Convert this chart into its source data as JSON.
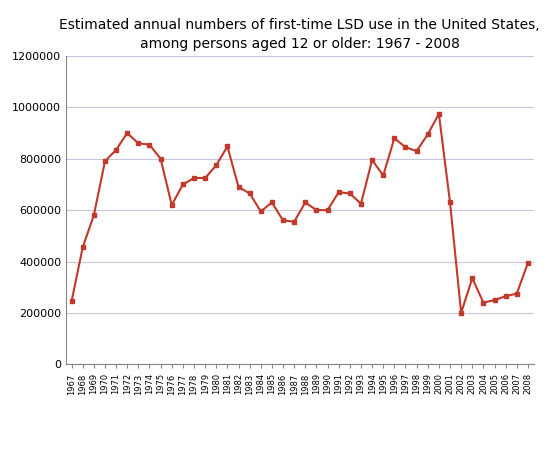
{
  "title": "Estimated annual numbers of first-time LSD use in the United States,\namong persons aged 12 or older: 1967 - 2008",
  "years": [
    1967,
    1968,
    1969,
    1970,
    1971,
    1972,
    1973,
    1974,
    1975,
    1976,
    1977,
    1978,
    1979,
    1980,
    1981,
    1982,
    1983,
    1984,
    1985,
    1986,
    1987,
    1988,
    1989,
    1990,
    1991,
    1992,
    1993,
    1994,
    1995,
    1996,
    1997,
    1998,
    1999,
    2000,
    2001,
    2002,
    2003,
    2004,
    2005,
    2006,
    2007,
    2008
  ],
  "values": [
    245000,
    455000,
    580000,
    790000,
    835000,
    900000,
    860000,
    855000,
    800000,
    620000,
    700000,
    725000,
    725000,
    775000,
    848000,
    690000,
    665000,
    595000,
    630000,
    560000,
    555000,
    630000,
    600000,
    600000,
    670000,
    665000,
    625000,
    795000,
    735000,
    880000,
    845000,
    830000,
    895000,
    975000,
    630000,
    200000,
    335000,
    240000,
    250000,
    265000,
    275000,
    395000
  ],
  "line_color": "#c0392b",
  "marker": "s",
  "marker_size": 3.5,
  "ylim": [
    0,
    1200000
  ],
  "yticks": [
    0,
    200000,
    400000,
    600000,
    800000,
    1000000,
    1200000
  ],
  "grid_color": "#b0b0cc",
  "grid_alpha": 0.7,
  "background_color": "#ffffff",
  "title_fontsize": 10,
  "xtick_fontsize": 6,
  "ytick_fontsize": 8
}
